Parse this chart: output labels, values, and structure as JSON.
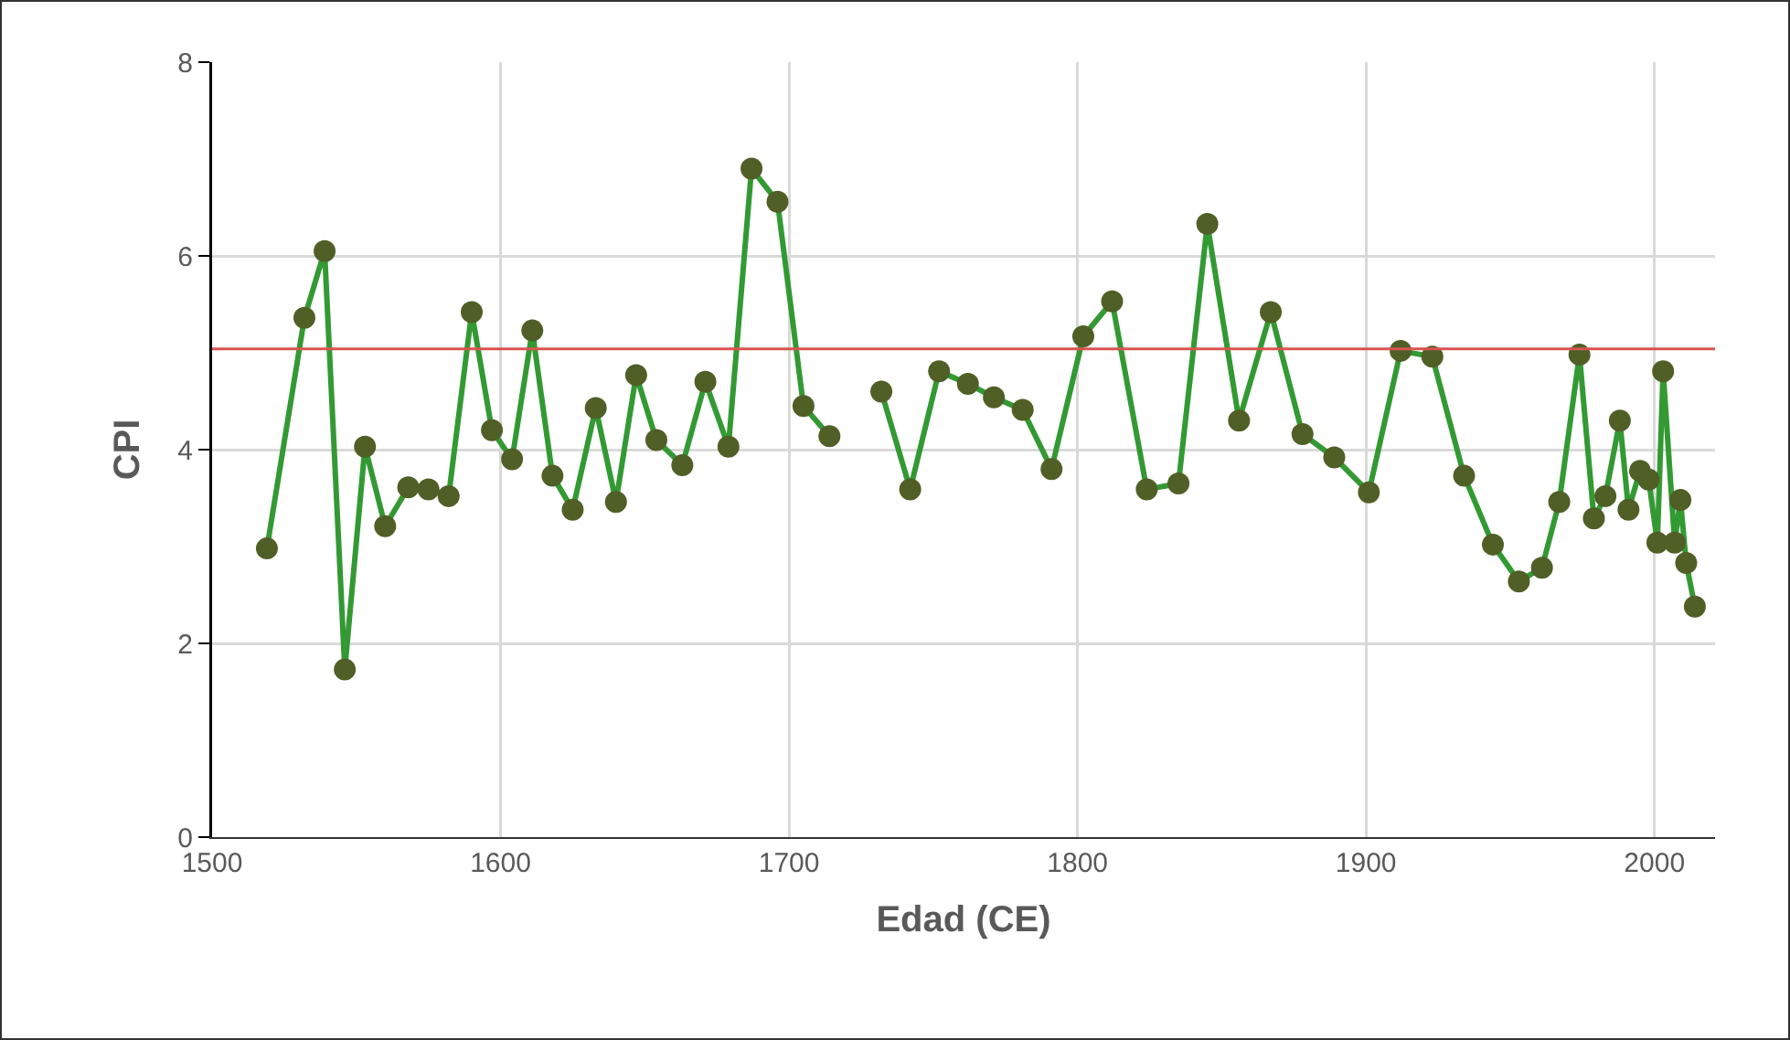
{
  "chart_data": {
    "type": "line",
    "xlabel": "Edad (CE)",
    "ylabel": "CPI",
    "x": [
      1519,
      1532,
      1539,
      1546,
      1553,
      1560,
      1568,
      1575,
      1582,
      1590,
      1597,
      1604,
      1611,
      1618,
      1625,
      1633,
      1640,
      1647,
      1654,
      1663,
      1671,
      1679,
      1687,
      1696,
      1705,
      1714,
      1723,
      1732,
      1742,
      1752,
      1762,
      1771,
      1781,
      1791,
      1802,
      1812,
      1824,
      1835,
      1845,
      1856,
      1867,
      1878,
      1889,
      1901,
      1912,
      1923,
      1934,
      1944,
      1953,
      1961,
      1967,
      1974,
      1979,
      1983,
      1988,
      1991,
      1995,
      1998,
      2001,
      2003,
      2007,
      2009,
      2011,
      2014
    ],
    "series": [
      {
        "color": "#339933",
        "values": [
          2.98,
          5.36,
          6.05,
          1.73,
          4.03,
          3.21,
          3.61,
          3.59,
          3.52,
          5.42,
          4.2,
          3.9,
          5.23,
          3.73,
          3.38,
          4.43,
          3.46,
          4.77,
          4.1,
          3.84,
          4.7,
          4.03,
          6.9,
          6.56,
          4.45,
          4.14,
          null,
          4.6,
          3.59,
          4.81,
          4.68,
          4.54,
          4.41,
          3.8,
          5.17,
          5.53,
          3.59,
          3.65,
          6.33,
          4.3,
          5.42,
          4.16,
          3.92,
          3.56,
          5.02,
          4.96,
          3.73,
          3.02,
          2.64,
          2.78,
          3.46,
          4.98,
          3.29,
          3.52,
          4.3,
          3.38,
          3.78,
          3.69,
          3.04,
          4.81,
          3.04,
          3.48,
          2.83,
          2.38
        ]
      }
    ],
    "xlim": [
      1500,
      2021
    ],
    "xticks": [
      1500,
      1600,
      1700,
      1800,
      1900,
      2000
    ],
    "ylim": [
      0,
      8
    ],
    "yticks": [
      0,
      2,
      4,
      6,
      8
    ],
    "ref_lines": [
      {
        "axis": "y",
        "value": 5.04,
        "color": "#d9534f"
      }
    ],
    "grid": true,
    "marker": "circle",
    "line_style": "solid"
  }
}
